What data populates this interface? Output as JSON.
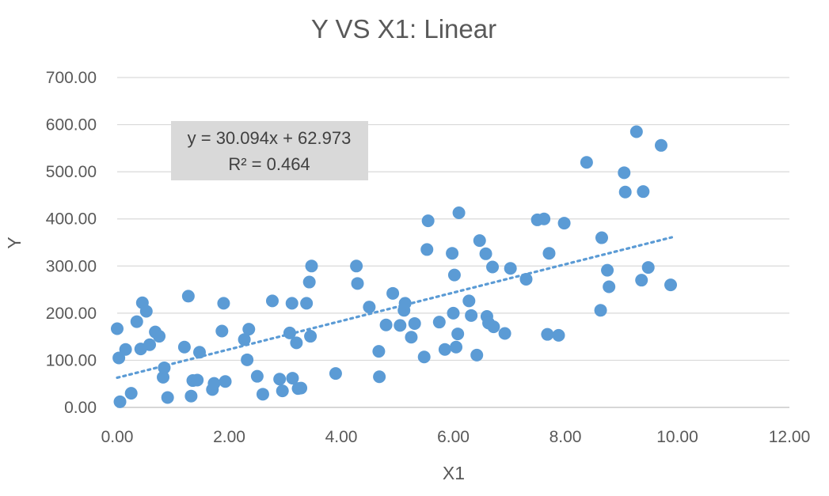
{
  "chart_data": {
    "type": "scatter",
    "title": "Y VS X1: Linear",
    "xlabel": "X1",
    "ylabel": "Y",
    "xlim": [
      0,
      12
    ],
    "ylim": [
      0,
      700
    ],
    "x_ticks": [
      "0.00",
      "2.00",
      "4.00",
      "6.00",
      "8.00",
      "10.00",
      "12.00"
    ],
    "y_ticks": [
      "0.00",
      "100.00",
      "200.00",
      "300.00",
      "400.00",
      "500.00",
      "600.00",
      "700.00"
    ],
    "grid": "horizontal",
    "point_color": "#5b9bd5",
    "trendline": {
      "type": "linear",
      "slope": 30.094,
      "intercept": 62.973,
      "x_range": [
        0,
        9.9
      ],
      "style": "dotted",
      "color": "#5b9bd5",
      "equation": "y = 30.094x + 62.973",
      "r_squared": "R² = 0.464"
    },
    "points": [
      [
        0.0,
        167
      ],
      [
        0.03,
        105
      ],
      [
        0.05,
        12
      ],
      [
        0.15,
        123
      ],
      [
        0.25,
        30
      ],
      [
        0.35,
        182
      ],
      [
        0.42,
        124
      ],
      [
        0.45,
        222
      ],
      [
        0.52,
        204
      ],
      [
        0.58,
        133
      ],
      [
        0.68,
        160
      ],
      [
        0.75,
        151
      ],
      [
        0.82,
        64
      ],
      [
        0.84,
        84
      ],
      [
        0.9,
        21
      ],
      [
        1.2,
        128
      ],
      [
        1.27,
        236
      ],
      [
        1.32,
        24
      ],
      [
        1.35,
        57
      ],
      [
        1.43,
        58
      ],
      [
        1.47,
        117
      ],
      [
        1.7,
        38
      ],
      [
        1.73,
        51
      ],
      [
        1.87,
        162
      ],
      [
        1.9,
        221
      ],
      [
        1.93,
        55
      ],
      [
        2.27,
        144
      ],
      [
        2.32,
        101
      ],
      [
        2.35,
        166
      ],
      [
        2.5,
        66
      ],
      [
        2.6,
        28
      ],
      [
        2.77,
        226
      ],
      [
        2.9,
        60
      ],
      [
        2.95,
        35
      ],
      [
        3.08,
        158
      ],
      [
        3.12,
        221
      ],
      [
        3.13,
        62
      ],
      [
        3.2,
        137
      ],
      [
        3.23,
        40
      ],
      [
        3.28,
        41
      ],
      [
        3.38,
        221
      ],
      [
        3.43,
        266
      ],
      [
        3.45,
        151
      ],
      [
        3.47,
        300
      ],
      [
        3.9,
        72
      ],
      [
        4.27,
        300
      ],
      [
        4.29,
        263
      ],
      [
        4.5,
        213
      ],
      [
        4.67,
        119
      ],
      [
        4.68,
        65
      ],
      [
        4.8,
        175
      ],
      [
        4.92,
        242
      ],
      [
        5.05,
        174
      ],
      [
        5.12,
        206
      ],
      [
        5.14,
        221
      ],
      [
        5.25,
        149
      ],
      [
        5.31,
        178
      ],
      [
        5.48,
        107
      ],
      [
        5.53,
        335
      ],
      [
        5.55,
        396
      ],
      [
        5.75,
        181
      ],
      [
        5.85,
        123
      ],
      [
        5.98,
        327
      ],
      [
        6.0,
        200
      ],
      [
        6.02,
        281
      ],
      [
        6.05,
        128
      ],
      [
        6.08,
        156
      ],
      [
        6.1,
        413
      ],
      [
        6.28,
        226
      ],
      [
        6.32,
        195
      ],
      [
        6.42,
        111
      ],
      [
        6.47,
        354
      ],
      [
        6.58,
        326
      ],
      [
        6.6,
        193
      ],
      [
        6.63,
        179
      ],
      [
        6.7,
        298
      ],
      [
        6.72,
        171
      ],
      [
        6.92,
        157
      ],
      [
        7.02,
        295
      ],
      [
        7.3,
        272
      ],
      [
        7.5,
        398
      ],
      [
        7.62,
        400
      ],
      [
        7.68,
        155
      ],
      [
        7.71,
        327
      ],
      [
        7.88,
        153
      ],
      [
        7.98,
        391
      ],
      [
        8.38,
        520
      ],
      [
        8.63,
        206
      ],
      [
        8.65,
        360
      ],
      [
        8.75,
        291
      ],
      [
        8.78,
        256
      ],
      [
        9.05,
        498
      ],
      [
        9.07,
        457
      ],
      [
        9.27,
        585
      ],
      [
        9.36,
        270
      ],
      [
        9.39,
        458
      ],
      [
        9.48,
        297
      ],
      [
        9.71,
        556
      ],
      [
        9.88,
        260
      ]
    ]
  }
}
